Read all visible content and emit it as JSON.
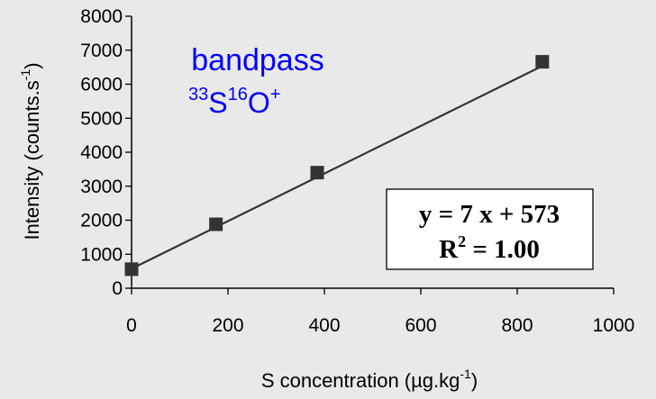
{
  "chart_data": {
    "type": "scatter",
    "xlabel": "S concentration (µg.kg",
    "xlabel_sup": "-1",
    "xlabel_close": ")",
    "ylabel": "Intensity (counts.s",
    "ylabel_sup": "-1",
    "ylabel_close": ")",
    "xlim": [
      0,
      1000
    ],
    "ylim": [
      0,
      8000
    ],
    "xticks": [
      0,
      200,
      400,
      600,
      800,
      1000
    ],
    "yticks": [
      0,
      1000,
      2000,
      3000,
      4000,
      5000,
      6000,
      7000,
      8000
    ],
    "grid": false,
    "points": [
      {
        "x": 0,
        "y": 560
      },
      {
        "x": 175,
        "y": 1880
      },
      {
        "x": 385,
        "y": 3400
      },
      {
        "x": 852,
        "y": 6660
      }
    ],
    "fit": {
      "slope": 7,
      "intercept": 573,
      "x_range": [
        0,
        852
      ]
    },
    "annotation": {
      "line1": "bandpass",
      "isotope_mass_1": "33",
      "element_1": "S",
      "isotope_mass_2": "16",
      "element_2": "O",
      "charge": "+"
    },
    "equation": {
      "line1": "y = 7 x + 573",
      "r2_prefix": "R",
      "r2_sup": "2",
      "r2_value": " = 1.00"
    },
    "colors": {
      "background": "#e9e9e9",
      "marker": "#333333",
      "line": "#333333",
      "annotation": "#0000ff",
      "box_fill": "#ffffff"
    }
  }
}
